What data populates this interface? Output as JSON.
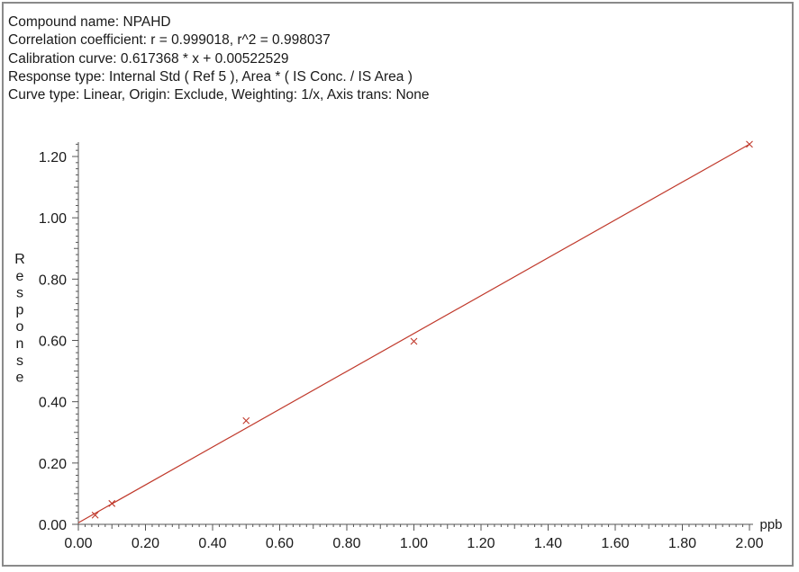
{
  "header": {
    "compound": "Compound name: NPAHD",
    "correlation": "Correlation coefficient: r = 0.999018, r^2 = 0.998037",
    "calibration": "Calibration curve: 0.617368 * x + 0.00522529",
    "response_type": "Response type: Internal Std ( Ref 5 ), Area * ( IS Conc. / IS Area )",
    "curve_type": "Curve type: Linear, Origin: Exclude, Weighting: 1/x, Axis trans: None"
  },
  "chart_data": {
    "type": "scatter",
    "xlabel": "ppb",
    "ylabel": "Response",
    "xlim": [
      0,
      2.0
    ],
    "ylim": [
      0,
      1.25
    ],
    "x_ticks": [
      "0.00",
      "0.20",
      "0.40",
      "0.60",
      "0.80",
      "1.00",
      "1.20",
      "1.40",
      "1.60",
      "1.80",
      "2.00"
    ],
    "y_ticks": [
      "0.00",
      "0.20",
      "0.40",
      "0.60",
      "0.80",
      "1.00",
      "1.20"
    ],
    "points": [
      {
        "x": 0.05,
        "y": 0.03
      },
      {
        "x": 0.1,
        "y": 0.068
      },
      {
        "x": 0.5,
        "y": 0.338
      },
      {
        "x": 1.0,
        "y": 0.597
      },
      {
        "x": 2.0,
        "y": 1.24
      }
    ],
    "fit": {
      "slope": 0.617368,
      "intercept": 0.00522529
    },
    "colors": {
      "series": "#c0392b",
      "axis": "#555555"
    },
    "grid": false
  }
}
